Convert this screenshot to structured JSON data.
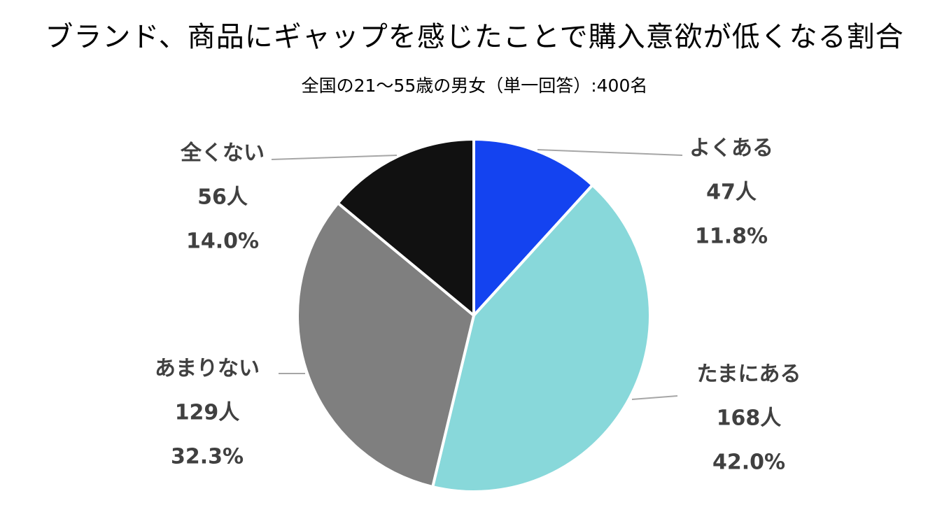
{
  "title": "ブランド、商品にギャップを感じたことで購入意欲が低くなる割合",
  "subtitle": "全国の21〜55歳の男女（単一回答）:400名",
  "chart_data": {
    "type": "pie",
    "title": "ブランド、商品にギャップを感じたことで購入意欲が低くなる割合",
    "subtitle": "全国の21〜55歳の男女（単一回答）:400名",
    "total": 400,
    "slices": [
      {
        "label": "よくある",
        "count": 47,
        "count_label": "47人",
        "percent": 11.8,
        "percent_label": "11.8%",
        "color": "#1443F0"
      },
      {
        "label": "たまにある",
        "count": 168,
        "count_label": "168人",
        "percent": 42.0,
        "percent_label": "42.0%",
        "color": "#88D8DA"
      },
      {
        "label": "あまりない",
        "count": 129,
        "count_label": "129人",
        "percent": 32.3,
        "percent_label": "32.3%",
        "color": "#7F7F7F"
      },
      {
        "label": "全くない",
        "count": 56,
        "count_label": "56人",
        "percent": 14.0,
        "percent_label": "14.0%",
        "color": "#111111"
      }
    ]
  }
}
